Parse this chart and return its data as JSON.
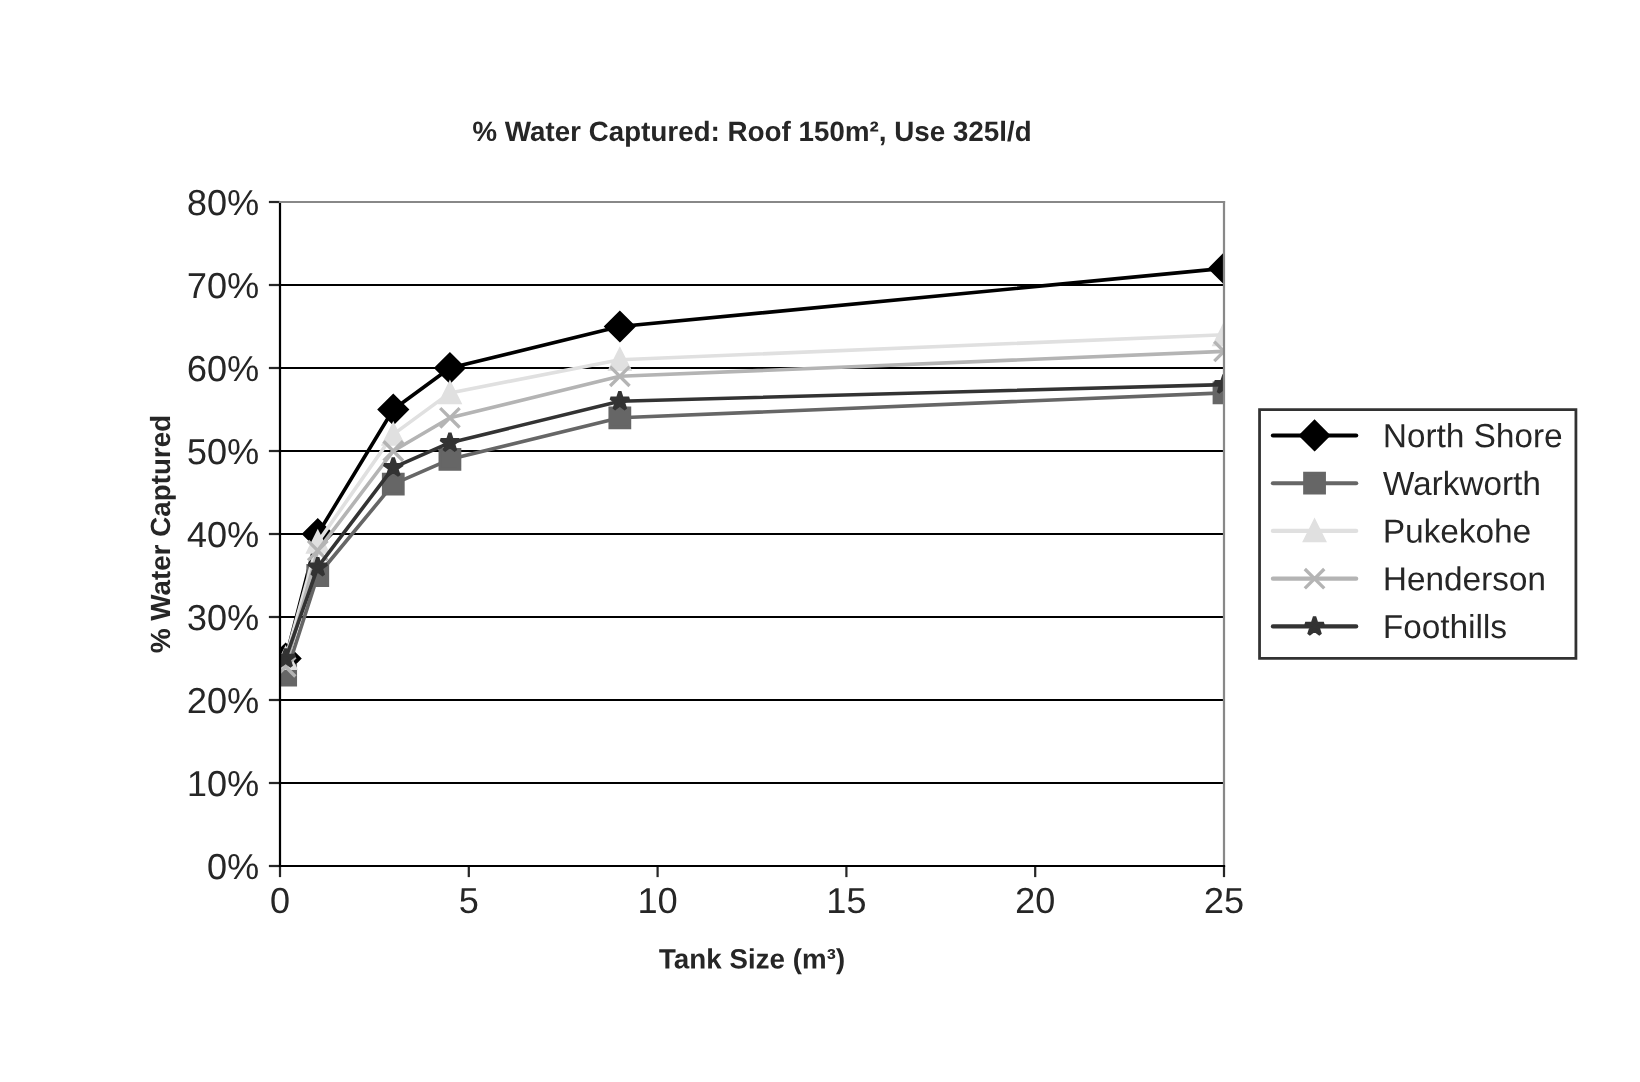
{
  "chart_data": {
    "type": "line",
    "title": "% Water Captured: Roof 150m², Use 325l/d",
    "xlabel": "Tank Size (m³)",
    "ylabel": "% Water Captured",
    "x": [
      0.15,
      1,
      3,
      4.5,
      9,
      25
    ],
    "series": [
      {
        "name": "North Shore",
        "color": "#000000",
        "marker": "diamond",
        "values": [
          25,
          40,
          55,
          60,
          65,
          72
        ]
      },
      {
        "name": "Warkworth",
        "color": "#666666",
        "marker": "square",
        "values": [
          23,
          35,
          46,
          49,
          54,
          57
        ]
      },
      {
        "name": "Pukekohe",
        "color": "#e0e0e0",
        "marker": "triangle",
        "values": [
          25,
          39,
          52,
          57,
          61,
          64
        ]
      },
      {
        "name": "Henderson",
        "color": "#b4b4b4",
        "marker": "cross",
        "values": [
          24,
          38,
          50,
          54,
          59,
          62
        ]
      },
      {
        "name": "Foothills",
        "color": "#333333",
        "marker": "star",
        "values": [
          25,
          36,
          48,
          51,
          56,
          58
        ]
      }
    ],
    "xlim": [
      0,
      25
    ],
    "xticks": [
      0,
      5,
      10,
      15,
      20,
      25
    ],
    "ylim": [
      0,
      80
    ],
    "yticks": [
      {
        "value": 0,
        "label": "0%"
      },
      {
        "value": 10,
        "label": "10%"
      },
      {
        "value": 20,
        "label": "20%"
      },
      {
        "value": 30,
        "label": "30%"
      },
      {
        "value": 40,
        "label": "40%"
      },
      {
        "value": 50,
        "label": "50%"
      },
      {
        "value": 60,
        "label": "60%"
      },
      {
        "value": 70,
        "label": "70%"
      },
      {
        "value": 80,
        "label": "80%"
      }
    ],
    "grid": "y",
    "legend": "right",
    "line_style": "solid"
  }
}
